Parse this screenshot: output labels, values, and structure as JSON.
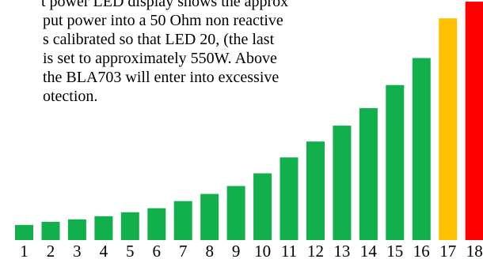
{
  "caption": {
    "lines": [
      "t power LED display shows the approx",
      "put power into a 50 Ohm non reactive",
      "s calibrated so that LED 20, (the last",
      "is set to approximately 550W. Above",
      "the BLA703 will enter into excessive",
      "otection."
    ]
  },
  "chart_data": {
    "type": "bar",
    "categories": [
      "1",
      "2",
      "3",
      "4",
      "5",
      "6",
      "7",
      "8",
      "9",
      "10",
      "11",
      "12",
      "13",
      "14",
      "15",
      "16",
      "17",
      "18"
    ],
    "values": [
      19,
      23,
      26,
      30,
      35,
      40,
      49,
      58,
      68,
      84,
      104,
      124,
      144,
      166,
      195,
      229,
      279,
      300
    ],
    "ylim": [
      0,
      310
    ],
    "bar_colors": [
      "#12b04c",
      "#12b04c",
      "#12b04c",
      "#12b04c",
      "#12b04c",
      "#12b04c",
      "#12b04c",
      "#12b04c",
      "#12b04c",
      "#12b04c",
      "#12b04c",
      "#12b04c",
      "#12b04c",
      "#12b04c",
      "#12b04c",
      "#12b04c",
      "#ffc000",
      "#ff0000"
    ],
    "grid": false,
    "legend": "none"
  }
}
